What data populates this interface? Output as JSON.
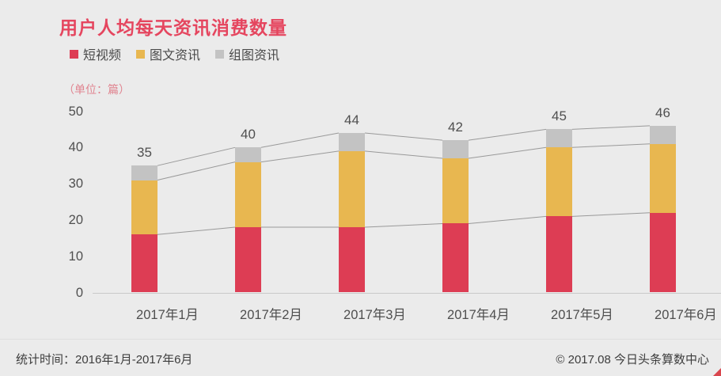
{
  "title": "用户人均每天资讯消费数量",
  "unit_label": "（单位：篇）",
  "footer": {
    "left": "统计时间：2016年1月-2017年6月",
    "right": "© 2017.08 今日头条算数中心"
  },
  "colors": {
    "background": "#ebebeb",
    "title": "#e5465f",
    "unit_label": "#e08490",
    "axis_line": "#c9c9c9",
    "connector": "#999999",
    "tick_text": "#4f4f4f",
    "corner_fold": "#d9464e"
  },
  "chart_data": {
    "type": "bar",
    "subtype": "stacked-columns-with-connector-lines",
    "title": "用户人均每天资讯消费数量",
    "unit": "篇",
    "categories": [
      "2017年1月",
      "2017年2月",
      "2017年3月",
      "2017年4月",
      "2017年5月",
      "2017年6月"
    ],
    "series": [
      {
        "name": "短视频",
        "color": "#dd3d54",
        "values": [
          16,
          18,
          18,
          19,
          21,
          22
        ]
      },
      {
        "name": "图文资讯",
        "color": "#e8b750",
        "values": [
          15,
          18,
          21,
          18,
          19,
          19
        ]
      },
      {
        "name": "组图资讯",
        "color": "#c3c3c3",
        "values": [
          4,
          4,
          5,
          5,
          5,
          5
        ]
      }
    ],
    "totals": [
      35,
      40,
      44,
      42,
      45,
      46
    ],
    "y_ticks": [
      0,
      10,
      20,
      30,
      40,
      50
    ],
    "ylim": [
      0,
      50
    ],
    "grid": false,
    "legend_position": "top-left",
    "total_labels_shown": true
  }
}
